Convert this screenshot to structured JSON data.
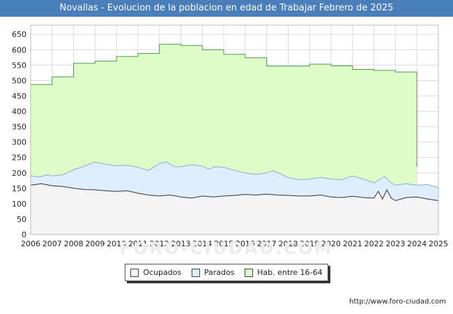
{
  "title": "Novallas - Evolucion de la poblacion en edad de Trabajar Febrero de 2025",
  "watermark": "FORO-CIUDAD.COM",
  "source": "http://www.foro-ciudad.com",
  "colors": {
    "title_bg": "#4a7ebb",
    "ocupados_fill": "#f3f3f3",
    "ocupados_line": "#333333",
    "parados_fill": "#ddeeff",
    "parados_line": "#8aaccf",
    "hab_fill": "#ddfcc8",
    "hab_line": "#4a9a4a"
  },
  "legend": {
    "ocupados": "Ocupados",
    "parados": "Parados",
    "hab": "Hab. entre 16-64"
  },
  "chart_data": {
    "type": "area",
    "title": "Novallas - Evolucion de la poblacion en edad de Trabajar Febrero de 2025",
    "xlabel": "",
    "ylabel": "",
    "xlim": [
      2006,
      2025
    ],
    "ylim": [
      0,
      680
    ],
    "x_ticks": [
      2006,
      2007,
      2008,
      2009,
      2010,
      2011,
      2012,
      2013,
      2014,
      2015,
      2016,
      2017,
      2018,
      2019,
      2020,
      2021,
      2022,
      2023,
      2024,
      2025
    ],
    "y_ticks": [
      0,
      50,
      100,
      150,
      200,
      250,
      300,
      350,
      400,
      450,
      500,
      550,
      600,
      650
    ],
    "grid": true,
    "series": [
      {
        "name": "Hab. entre 16-64",
        "step": true,
        "points": [
          [
            2006.0,
            487
          ],
          [
            2007.0,
            512
          ],
          [
            2008.0,
            556
          ],
          [
            2009.0,
            563
          ],
          [
            2010.0,
            578
          ],
          [
            2011.0,
            588
          ],
          [
            2012.0,
            618
          ],
          [
            2013.0,
            614
          ],
          [
            2014.0,
            600
          ],
          [
            2015.0,
            585
          ],
          [
            2016.0,
            574
          ],
          [
            2017.0,
            547
          ],
          [
            2018.0,
            547
          ],
          [
            2019.0,
            553
          ],
          [
            2020.0,
            548
          ],
          [
            2021.0,
            536
          ],
          [
            2022.0,
            533
          ],
          [
            2023.0,
            528
          ],
          [
            2023.95,
            528
          ],
          [
            2024.0,
            220
          ]
        ]
      },
      {
        "name": "Parados",
        "points": [
          [
            2006.0,
            190
          ],
          [
            2006.4,
            187
          ],
          [
            2006.8,
            194
          ],
          [
            2007.0,
            190
          ],
          [
            2007.5,
            194
          ],
          [
            2008.0,
            210
          ],
          [
            2008.5,
            222
          ],
          [
            2009.0,
            235
          ],
          [
            2009.5,
            228
          ],
          [
            2010.0,
            223
          ],
          [
            2010.5,
            225
          ],
          [
            2011.0,
            218
          ],
          [
            2011.5,
            208
          ],
          [
            2012.0,
            230
          ],
          [
            2012.3,
            236
          ],
          [
            2012.7,
            220
          ],
          [
            2013.0,
            220
          ],
          [
            2013.5,
            226
          ],
          [
            2014.0,
            222
          ],
          [
            2014.3,
            212
          ],
          [
            2014.6,
            220
          ],
          [
            2015.0,
            218
          ],
          [
            2015.5,
            208
          ],
          [
            2016.0,
            200
          ],
          [
            2016.5,
            195
          ],
          [
            2017.0,
            200
          ],
          [
            2017.3,
            207
          ],
          [
            2017.7,
            195
          ],
          [
            2018.0,
            185
          ],
          [
            2018.5,
            178
          ],
          [
            2019.0,
            180
          ],
          [
            2019.5,
            185
          ],
          [
            2020.0,
            180
          ],
          [
            2020.5,
            178
          ],
          [
            2021.0,
            190
          ],
          [
            2021.5,
            180
          ],
          [
            2022.0,
            168
          ],
          [
            2022.3,
            180
          ],
          [
            2022.5,
            188
          ],
          [
            2022.8,
            168
          ],
          [
            2023.0,
            160
          ],
          [
            2023.5,
            165
          ],
          [
            2024.0,
            160
          ],
          [
            2024.5,
            162
          ],
          [
            2025.0,
            152
          ]
        ]
      },
      {
        "name": "Ocupados",
        "points": [
          [
            2006.0,
            160
          ],
          [
            2006.5,
            165
          ],
          [
            2007.0,
            158
          ],
          [
            2007.5,
            156
          ],
          [
            2008.0,
            150
          ],
          [
            2008.5,
            146
          ],
          [
            2009.0,
            145
          ],
          [
            2009.5,
            142
          ],
          [
            2010.0,
            140
          ],
          [
            2010.5,
            142
          ],
          [
            2011.0,
            134
          ],
          [
            2011.5,
            128
          ],
          [
            2012.0,
            125
          ],
          [
            2012.5,
            128
          ],
          [
            2013.0,
            122
          ],
          [
            2013.5,
            118
          ],
          [
            2014.0,
            125
          ],
          [
            2014.5,
            122
          ],
          [
            2015.0,
            125
          ],
          [
            2015.5,
            127
          ],
          [
            2016.0,
            130
          ],
          [
            2016.5,
            128
          ],
          [
            2017.0,
            131
          ],
          [
            2017.5,
            128
          ],
          [
            2018.0,
            127
          ],
          [
            2018.5,
            125
          ],
          [
            2019.0,
            125
          ],
          [
            2019.5,
            128
          ],
          [
            2020.0,
            122
          ],
          [
            2020.5,
            120
          ],
          [
            2021.0,
            124
          ],
          [
            2021.5,
            120
          ],
          [
            2022.0,
            118
          ],
          [
            2022.2,
            140
          ],
          [
            2022.4,
            115
          ],
          [
            2022.6,
            145
          ],
          [
            2022.8,
            118
          ],
          [
            2023.0,
            110
          ],
          [
            2023.5,
            120
          ],
          [
            2024.0,
            122
          ],
          [
            2024.5,
            115
          ],
          [
            2025.0,
            110
          ]
        ]
      }
    ]
  }
}
